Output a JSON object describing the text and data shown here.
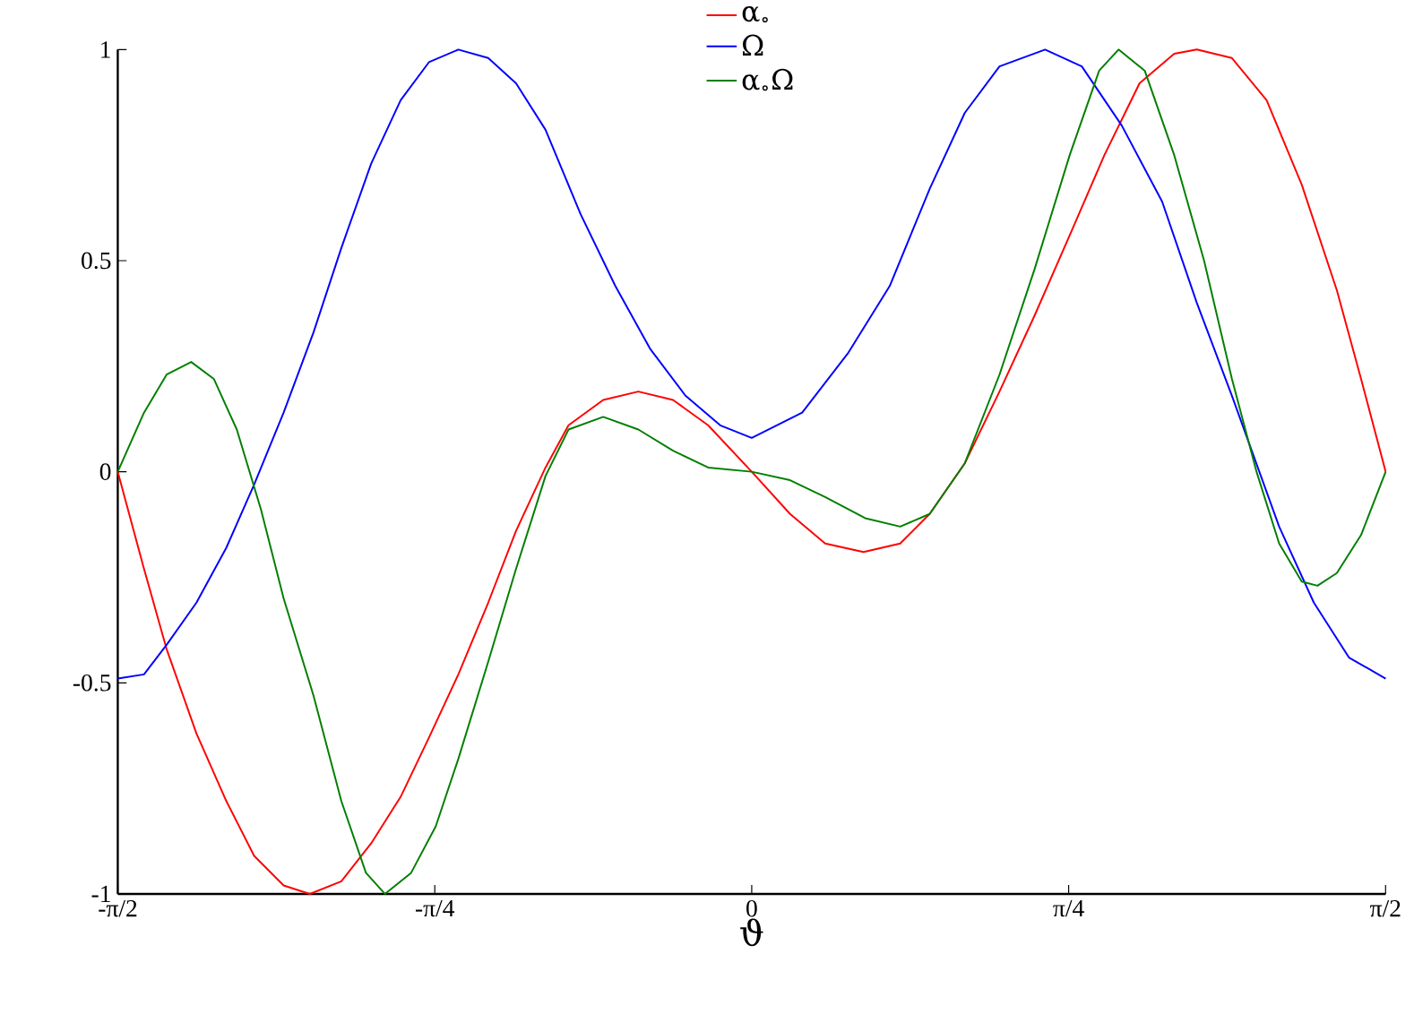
{
  "chart_data": {
    "type": "line",
    "xlabel": "ϑ",
    "xlim": [
      -1.571,
      1.571
    ],
    "ylim": [
      -1,
      1
    ],
    "xticks": [
      {
        "value": -1.5708,
        "label": "-π/2"
      },
      {
        "value": -0.7854,
        "label": "-π/4"
      },
      {
        "value": 0,
        "label": "0"
      },
      {
        "value": 0.7854,
        "label": "π/4"
      },
      {
        "value": 1.5708,
        "label": "π/2"
      }
    ],
    "yticks": [
      -1,
      -0.5,
      0,
      0.5,
      1
    ],
    "grid": false,
    "legend": "top",
    "marker": "none",
    "line_style": "solid",
    "series": [
      {
        "name": "α$_{∘}$",
        "color": "#ff0000",
        "x": [
          -1.571,
          -1.506,
          -1.45,
          -1.376,
          -1.302,
          -1.233,
          -1.16,
          -1.095,
          -1.017,
          -0.943,
          -0.87,
          -0.8,
          -0.727,
          -0.653,
          -0.584,
          -0.511,
          -0.454,
          -0.368,
          -0.281,
          -0.195,
          -0.108,
          0,
          0.095,
          0.182,
          0.277,
          0.368,
          0.441,
          0.528,
          0.614,
          0.701,
          0.788,
          0.874,
          0.961,
          1.047,
          1.103,
          1.19,
          1.276,
          1.363,
          1.45,
          1.51,
          1.571
        ],
        "values": [
          0,
          -0.23,
          -0.42,
          -0.62,
          -0.78,
          -0.91,
          -0.98,
          -1,
          -0.97,
          -0.88,
          -0.77,
          -0.63,
          -0.48,
          -0.31,
          -0.14,
          0.01,
          0.11,
          0.17,
          0.19,
          0.17,
          0.11,
          0,
          -0.1,
          -0.17,
          -0.19,
          -0.17,
          -0.1,
          0.02,
          0.19,
          0.37,
          0.56,
          0.75,
          0.92,
          0.99,
          1,
          0.98,
          0.88,
          0.68,
          0.43,
          0.22,
          0
        ]
      },
      {
        "name": "Ω",
        "color": "#0000ff",
        "x": [
          -1.571,
          -1.506,
          -1.45,
          -1.376,
          -1.302,
          -1.233,
          -1.16,
          -1.086,
          -1.017,
          -0.943,
          -0.87,
          -0.8,
          -0.727,
          -0.653,
          -0.584,
          -0.511,
          -0.424,
          -0.338,
          -0.251,
          -0.164,
          -0.078,
          0,
          0.125,
          0.238,
          0.342,
          0.441,
          0.528,
          0.614,
          0.727,
          0.818,
          0.917,
          1.017,
          1.103,
          1.19,
          1.307,
          1.393,
          1.48,
          1.571
        ],
        "values": [
          -0.49,
          -0.48,
          -0.41,
          -0.31,
          -0.18,
          -0.03,
          0.14,
          0.33,
          0.53,
          0.73,
          0.88,
          0.97,
          1,
          0.98,
          0.92,
          0.81,
          0.61,
          0.44,
          0.29,
          0.18,
          0.11,
          0.08,
          0.14,
          0.28,
          0.44,
          0.67,
          0.85,
          0.96,
          1,
          0.96,
          0.82,
          0.64,
          0.4,
          0.18,
          -0.13,
          -0.31,
          -0.44,
          -0.49
        ]
      },
      {
        "name": "α$_{∘}$Ω",
        "color": "#007f00",
        "x": [
          -1.571,
          -1.506,
          -1.45,
          -1.389,
          -1.333,
          -1.276,
          -1.216,
          -1.16,
          -1.086,
          -1.017,
          -0.956,
          -0.909,
          -0.844,
          -0.783,
          -0.727,
          -0.653,
          -0.584,
          -0.511,
          -0.454,
          -0.368,
          -0.281,
          -0.195,
          -0.108,
          0,
          0.095,
          0.182,
          0.281,
          0.368,
          0.441,
          0.528,
          0.614,
          0.701,
          0.788,
          0.861,
          0.909,
          0.974,
          1.047,
          1.121,
          1.19,
          1.251,
          1.307,
          1.363,
          1.402,
          1.45,
          1.51,
          1.571
        ],
        "values": [
          0,
          0.14,
          0.23,
          0.26,
          0.22,
          0.1,
          -0.09,
          -0.3,
          -0.53,
          -0.78,
          -0.95,
          -1,
          -0.95,
          -0.84,
          -0.68,
          -0.45,
          -0.23,
          -0.01,
          0.1,
          0.13,
          0.1,
          0.05,
          0.01,
          0,
          -0.02,
          -0.06,
          -0.11,
          -0.13,
          -0.1,
          0.02,
          0.23,
          0.48,
          0.75,
          0.95,
          1,
          0.95,
          0.75,
          0.5,
          0.22,
          0,
          -0.17,
          -0.26,
          -0.27,
          -0.24,
          -0.15,
          0
        ]
      }
    ]
  }
}
